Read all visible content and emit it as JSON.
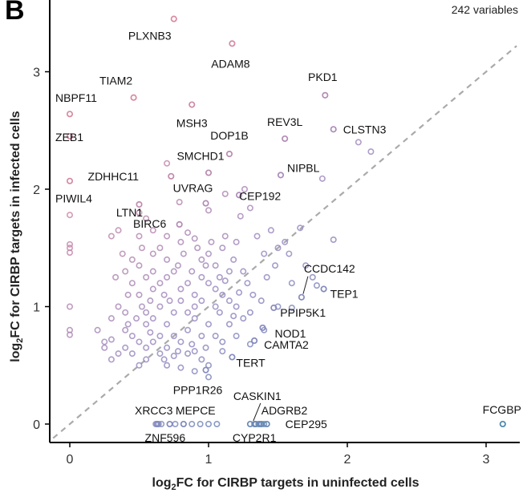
{
  "panel_letter": "B",
  "variable_count": "242 variables",
  "chart_data": {
    "type": "scatter",
    "xlabel": {
      "prefix": "log",
      "sub": "2",
      "suffix": "FC for CIRBP targets in uninfected cells"
    },
    "ylabel": {
      "prefix": "log",
      "sub": "2",
      "suffix": "FC for CIRBP targets in infected cells"
    },
    "xlim": [
      -0.15,
      3.25
    ],
    "ylim": [
      -0.15,
      3.5
    ],
    "xticks": [
      0,
      1,
      2,
      3
    ],
    "yticks": [
      0,
      1,
      2,
      3
    ],
    "reference_line": "y = x (dashed grey)",
    "grid": false,
    "color_scale": {
      "low": "#4a86ab",
      "mid": "#9a8cc4",
      "high": "#d88aa0"
    },
    "labeled_points": [
      {
        "name": "PLXNB3",
        "x": 0.75,
        "y": 3.45
      },
      {
        "name": "ADAM8",
        "x": 1.17,
        "y": 3.24
      },
      {
        "name": "TIAM2",
        "x": 0.46,
        "y": 2.78
      },
      {
        "name": "NBPF11",
        "x": 0.0,
        "y": 2.64
      },
      {
        "name": "MSH3",
        "x": 0.88,
        "y": 2.72
      },
      {
        "name": "PKD1",
        "x": 1.84,
        "y": 2.8
      },
      {
        "name": "REV3L",
        "x": 1.55,
        "y": 2.43
      },
      {
        "name": "CLSTN3",
        "x": 1.9,
        "y": 2.51
      },
      {
        "name": "DOP1B",
        "x": 1.15,
        "y": 2.3
      },
      {
        "name": "ZEB1",
        "x": 0.0,
        "y": 2.45
      },
      {
        "name": "SMCHD1",
        "x": 1.0,
        "y": 2.14
      },
      {
        "name": "ZDHHC11",
        "x": 0.73,
        "y": 2.11
      },
      {
        "name": "NIPBL",
        "x": 1.52,
        "y": 2.12
      },
      {
        "name": "PIWIL4",
        "x": 0.0,
        "y": 2.07
      },
      {
        "name": "UVRAG",
        "x": 0.98,
        "y": 1.88
      },
      {
        "name": "CEP192",
        "x": 1.22,
        "y": 1.95
      },
      {
        "name": "LTN1",
        "x": 0.5,
        "y": 1.87
      },
      {
        "name": "BIRC6",
        "x": 0.79,
        "y": 1.7
      },
      {
        "name": "CCDC142",
        "x": 1.67,
        "y": 1.08
      },
      {
        "name": "TEP1",
        "x": 1.83,
        "y": 1.15
      },
      {
        "name": "PPIP5K1",
        "x": 1.47,
        "y": 0.99
      },
      {
        "name": "NOD1",
        "x": 1.39,
        "y": 0.82
      },
      {
        "name": "CAMTA2",
        "x": 1.33,
        "y": 0.71
      },
      {
        "name": "TERT",
        "x": 1.17,
        "y": 0.57
      },
      {
        "name": "PPP1R26",
        "x": 0.98,
        "y": 0.46
      },
      {
        "name": "FCGBP",
        "x": 3.12,
        "y": 0.0
      },
      {
        "name": "XRCC3",
        "x": 0.63,
        "y": 0.0
      },
      {
        "name": "MEPCE",
        "x": 0.82,
        "y": 0.0
      },
      {
        "name": "CASKIN1",
        "x": 1.34,
        "y": 0.0
      },
      {
        "name": "ADGRB2",
        "x": 1.38,
        "y": 0.0
      },
      {
        "name": "CEP295",
        "x": 1.42,
        "y": 0.0
      },
      {
        "name": "ZNF596",
        "x": 0.72,
        "y": 0.0
      },
      {
        "name": "CYP2R1",
        "x": 1.3,
        "y": 0.0
      }
    ],
    "other_points": [
      [
        0.0,
        1.78
      ],
      [
        0.0,
        1.53
      ],
      [
        0.0,
        1.5
      ],
      [
        0.0,
        1.46
      ],
      [
        0.0,
        1.0
      ],
      [
        0.0,
        0.8
      ],
      [
        0.0,
        0.76
      ],
      [
        0.7,
        2.22
      ],
      [
        0.79,
        1.89
      ],
      [
        1.0,
        1.82
      ],
      [
        1.3,
        1.84
      ],
      [
        1.12,
        1.96
      ],
      [
        1.26,
        2.0
      ],
      [
        2.08,
        2.4
      ],
      [
        2.17,
        2.32
      ],
      [
        1.82,
        2.09
      ],
      [
        1.66,
        1.67
      ],
      [
        1.9,
        1.57
      ],
      [
        1.5,
        1.5
      ],
      [
        1.55,
        1.55
      ],
      [
        1.4,
        1.45
      ],
      [
        1.23,
        1.77
      ],
      [
        1.6,
        1.2
      ],
      [
        1.25,
        1.3
      ],
      [
        1.5,
        1.0
      ],
      [
        1.6,
        0.99
      ],
      [
        1.4,
        0.8
      ],
      [
        1.3,
        0.68
      ],
      [
        1.2,
        0.75
      ],
      [
        1.1,
        0.7
      ],
      [
        1.1,
        0.62
      ],
      [
        1.0,
        0.5
      ],
      [
        1.3,
        0.95
      ],
      [
        1.0,
        0.4
      ],
      [
        0.9,
        0.45
      ],
      [
        0.8,
        0.48
      ],
      [
        0.7,
        0.5
      ],
      [
        0.5,
        1.8
      ],
      [
        0.55,
        1.75
      ],
      [
        0.3,
        1.6
      ],
      [
        0.35,
        1.65
      ],
      [
        0.5,
        1.6
      ],
      [
        0.85,
        1.63
      ],
      [
        0.9,
        1.58
      ],
      [
        0.95,
        1.4
      ],
      [
        1.0,
        1.45
      ],
      [
        1.05,
        1.35
      ],
      [
        1.15,
        1.3
      ],
      [
        0.6,
        1.45
      ],
      [
        0.65,
        1.5
      ],
      [
        0.7,
        1.4
      ],
      [
        0.75,
        1.3
      ],
      [
        0.4,
        1.3
      ],
      [
        0.45,
        1.2
      ],
      [
        0.5,
        1.1
      ],
      [
        0.35,
        1.0
      ],
      [
        0.4,
        0.95
      ],
      [
        0.3,
        0.9
      ],
      [
        0.55,
        0.95
      ],
      [
        0.6,
        0.9
      ],
      [
        0.65,
        1.0
      ],
      [
        0.7,
        0.85
      ],
      [
        0.75,
        0.95
      ],
      [
        0.8,
        1.05
      ],
      [
        0.85,
        0.8
      ],
      [
        0.9,
        0.9
      ],
      [
        0.95,
        0.75
      ],
      [
        1.0,
        0.85
      ],
      [
        0.5,
        0.7
      ],
      [
        0.55,
        0.65
      ],
      [
        0.6,
        0.7
      ],
      [
        0.45,
        0.6
      ],
      [
        0.35,
        0.6
      ],
      [
        0.25,
        0.7
      ],
      [
        0.2,
        0.8
      ],
      [
        0.65,
        0.6
      ],
      [
        0.7,
        0.65
      ],
      [
        0.8,
        0.7
      ],
      [
        0.85,
        0.6
      ],
      [
        0.9,
        0.62
      ],
      [
        0.75,
        0.58
      ],
      [
        0.55,
        0.55
      ],
      [
        0.4,
        0.8
      ],
      [
        0.3,
        0.72
      ],
      [
        0.25,
        0.65
      ],
      [
        0.6,
        1.15
      ],
      [
        0.65,
        1.2
      ],
      [
        0.7,
        1.25
      ],
      [
        0.8,
        1.15
      ],
      [
        0.85,
        1.2
      ],
      [
        0.9,
        1.1
      ],
      [
        0.95,
        1.05
      ],
      [
        1.05,
        1.0
      ],
      [
        1.1,
        1.1
      ],
      [
        1.15,
        1.05
      ],
      [
        1.2,
        1.0
      ],
      [
        0.5,
        1.35
      ],
      [
        0.55,
        1.25
      ],
      [
        0.45,
        1.4
      ],
      [
        0.6,
        1.3
      ],
      [
        0.8,
        1.55
      ],
      [
        0.7,
        1.6
      ],
      [
        1.1,
        1.5
      ],
      [
        1.2,
        1.55
      ],
      [
        1.35,
        1.6
      ],
      [
        1.45,
        1.65
      ],
      [
        1.0,
        1.2
      ],
      [
        1.05,
        1.15
      ],
      [
        0.95,
        1.25
      ],
      [
        0.55,
        0.85
      ],
      [
        0.45,
        0.75
      ],
      [
        0.65,
        0.75
      ],
      [
        0.75,
        0.75
      ],
      [
        0.85,
        0.95
      ],
      [
        0.9,
        1.0
      ],
      [
        0.4,
        0.65
      ],
      [
        0.5,
        0.5
      ],
      [
        0.3,
        0.55
      ],
      [
        0.62,
        0.0
      ],
      [
        0.64,
        0.0
      ],
      [
        0.66,
        0.0
      ],
      [
        0.76,
        0.0
      ],
      [
        0.88,
        0.0
      ],
      [
        0.94,
        0.0
      ],
      [
        1.0,
        0.0
      ],
      [
        1.06,
        0.0
      ],
      [
        1.33,
        0.0
      ],
      [
        1.36,
        0.0
      ],
      [
        1.37,
        0.0
      ],
      [
        1.4,
        0.0
      ],
      [
        0.33,
        1.25
      ],
      [
        0.42,
        1.1
      ],
      [
        0.48,
        0.9
      ],
      [
        1.12,
        1.22
      ],
      [
        1.18,
        1.4
      ],
      [
        1.28,
        1.2
      ],
      [
        1.32,
        1.1
      ],
      [
        1.38,
        1.05
      ],
      [
        1.25,
        0.9
      ],
      [
        1.15,
        0.85
      ],
      [
        1.05,
        0.75
      ],
      [
        0.95,
        0.55
      ],
      [
        0.72,
        1.05
      ],
      [
        0.68,
        1.1
      ],
      [
        0.58,
        1.05
      ],
      [
        0.52,
        1.0
      ],
      [
        0.78,
        1.35
      ],
      [
        0.88,
        1.3
      ],
      [
        0.98,
        1.35
      ],
      [
        1.08,
        1.25
      ],
      [
        0.82,
        1.45
      ],
      [
        0.92,
        1.5
      ],
      [
        1.02,
        1.55
      ],
      [
        1.12,
        1.6
      ],
      [
        0.6,
        1.65
      ],
      [
        0.52,
        1.5
      ],
      [
        0.38,
        1.45
      ],
      [
        0.42,
        0.85
      ],
      [
        0.58,
        0.78
      ],
      [
        0.68,
        0.55
      ],
      [
        0.78,
        0.62
      ],
      [
        0.88,
        0.68
      ],
      [
        0.98,
        0.65
      ],
      [
        1.08,
        0.95
      ],
      [
        1.18,
        0.92
      ],
      [
        1.22,
        1.12
      ],
      [
        1.42,
        1.25
      ],
      [
        1.48,
        1.35
      ],
      [
        1.58,
        1.45
      ],
      [
        1.7,
        1.35
      ],
      [
        1.75,
        1.25
      ],
      [
        1.78,
        1.18
      ]
    ]
  }
}
